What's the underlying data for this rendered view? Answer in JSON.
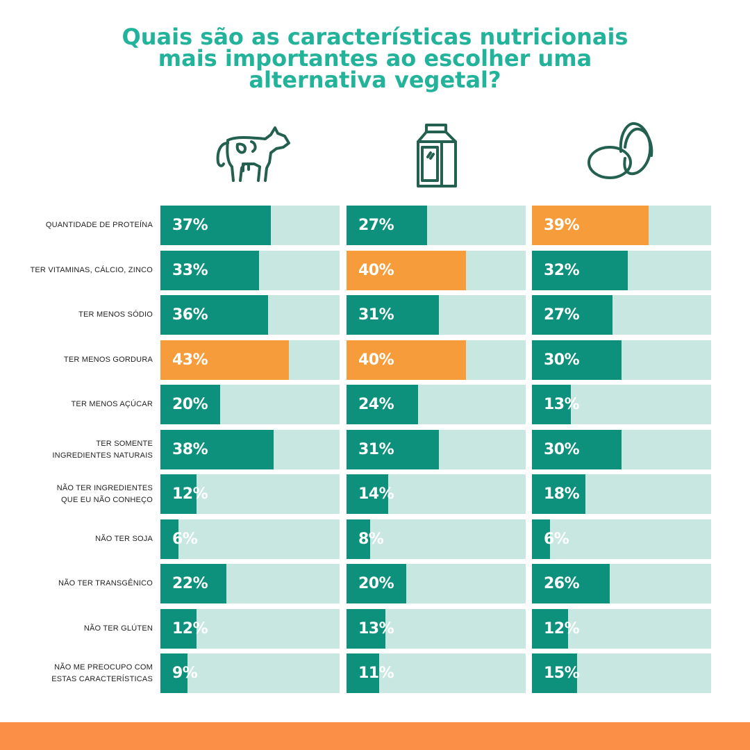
{
  "title": {
    "line1": "Quais são as características nutricionais",
    "line2": "mais importantes ao escolher uma",
    "line3": "alternativa vegetal?"
  },
  "icons": [
    "cow-icon",
    "milk-carton-icon",
    "eggs-icon"
  ],
  "colors": {
    "title": "#22b39a",
    "bar_default": "#0d917d",
    "bar_highlight": "#f69c3b",
    "track": "#c8e7e1",
    "icon_stroke": "#24604f",
    "footer": "#fb8f47"
  },
  "chart_data": {
    "type": "bar",
    "orientation": "horizontal",
    "value_unit": "%",
    "xlim": [
      0,
      100
    ],
    "groups": [
      "cow",
      "milk",
      "eggs"
    ],
    "categories": [
      [
        "Quantidade de proteína"
      ],
      [
        "Ter vitaminas, cálcio, zinco"
      ],
      [
        "Ter menos sódio"
      ],
      [
        "Ter menos gordura"
      ],
      [
        "Ter menos açúcar"
      ],
      [
        "Ter somente",
        "ingredientes naturais"
      ],
      [
        "Não ter ingredientes",
        "que eu não conheço"
      ],
      [
        "Não ter soja"
      ],
      [
        "Não ter transgênico"
      ],
      [
        "Não ter glúten"
      ],
      [
        "Não me preocupo com",
        "estas características"
      ]
    ],
    "series": [
      {
        "icon": "cow-icon",
        "values": [
          37,
          33,
          36,
          43,
          20,
          38,
          12,
          6,
          22,
          12,
          9
        ],
        "labels": [
          "37%",
          "33%",
          "36%",
          "43%",
          "20%",
          "38%",
          "12%",
          "6%",
          "22%",
          "12%",
          "9%"
        ],
        "highlight": [
          false,
          false,
          false,
          true,
          false,
          false,
          false,
          false,
          false,
          false,
          false
        ]
      },
      {
        "icon": "milk-carton-icon",
        "values": [
          27,
          40,
          31,
          40,
          24,
          31,
          14,
          8,
          20,
          13,
          11
        ],
        "labels": [
          "27%",
          "40%",
          "31%",
          "40%",
          "24%",
          "31%",
          "14%",
          "8%",
          "20%",
          "13%",
          "11%"
        ],
        "highlight": [
          false,
          true,
          false,
          true,
          false,
          false,
          false,
          false,
          false,
          false,
          false
        ]
      },
      {
        "icon": "eggs-icon",
        "values": [
          39,
          32,
          27,
          30,
          13,
          30,
          18,
          6,
          26,
          12,
          15
        ],
        "labels": [
          "39%",
          "32%",
          "27%",
          "30%",
          "13%",
          "30%",
          "18%",
          "6%",
          "26%",
          "12%",
          "15%"
        ],
        "highlight": [
          true,
          false,
          false,
          false,
          false,
          false,
          false,
          false,
          false,
          false,
          false
        ]
      }
    ]
  }
}
